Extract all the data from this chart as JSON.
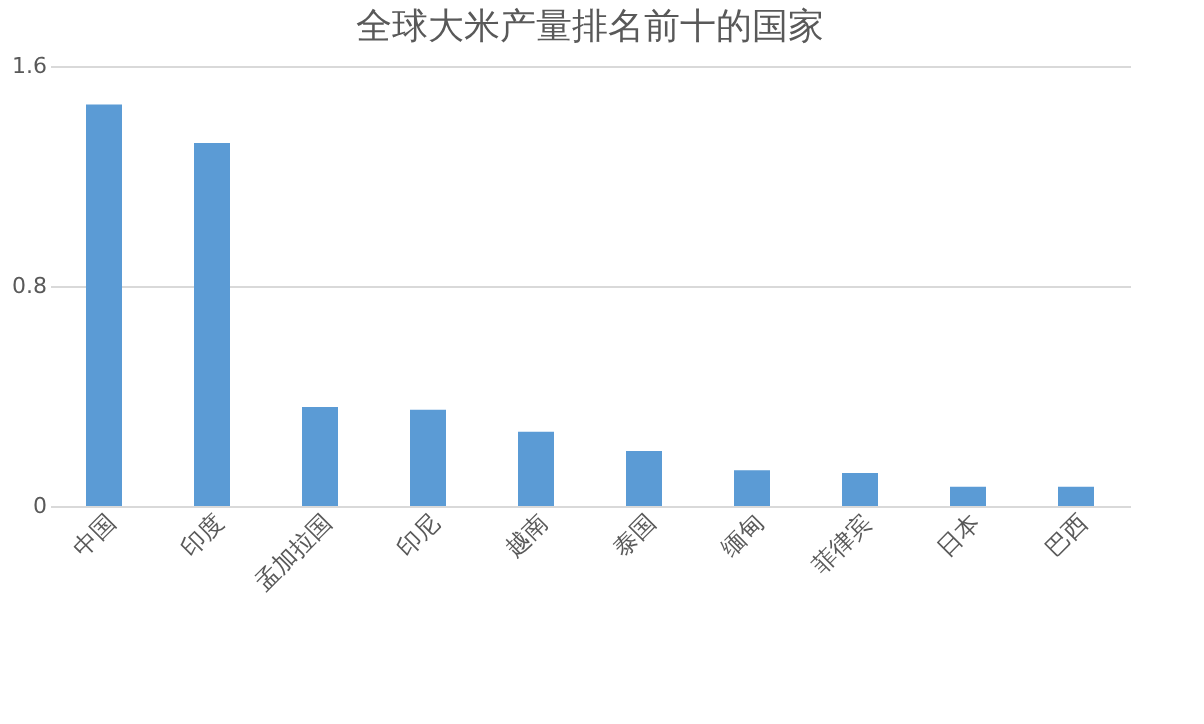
{
  "chart_data": {
    "type": "bar",
    "title": "全球大米产量排名前十的国家",
    "categories": [
      "中国",
      "印度",
      "孟加拉国",
      "印尼",
      "越南",
      "泰国",
      "缅甸",
      "菲律宾",
      "日本",
      "巴西"
    ],
    "values": [
      1.46,
      1.32,
      0.36,
      0.35,
      0.27,
      0.2,
      0.13,
      0.12,
      0.07,
      0.07
    ],
    "color": "#5b9bd5",
    "ylim": [
      0,
      1.6
    ],
    "yticks": [
      0,
      0.8,
      1.6
    ],
    "grid": "y"
  }
}
